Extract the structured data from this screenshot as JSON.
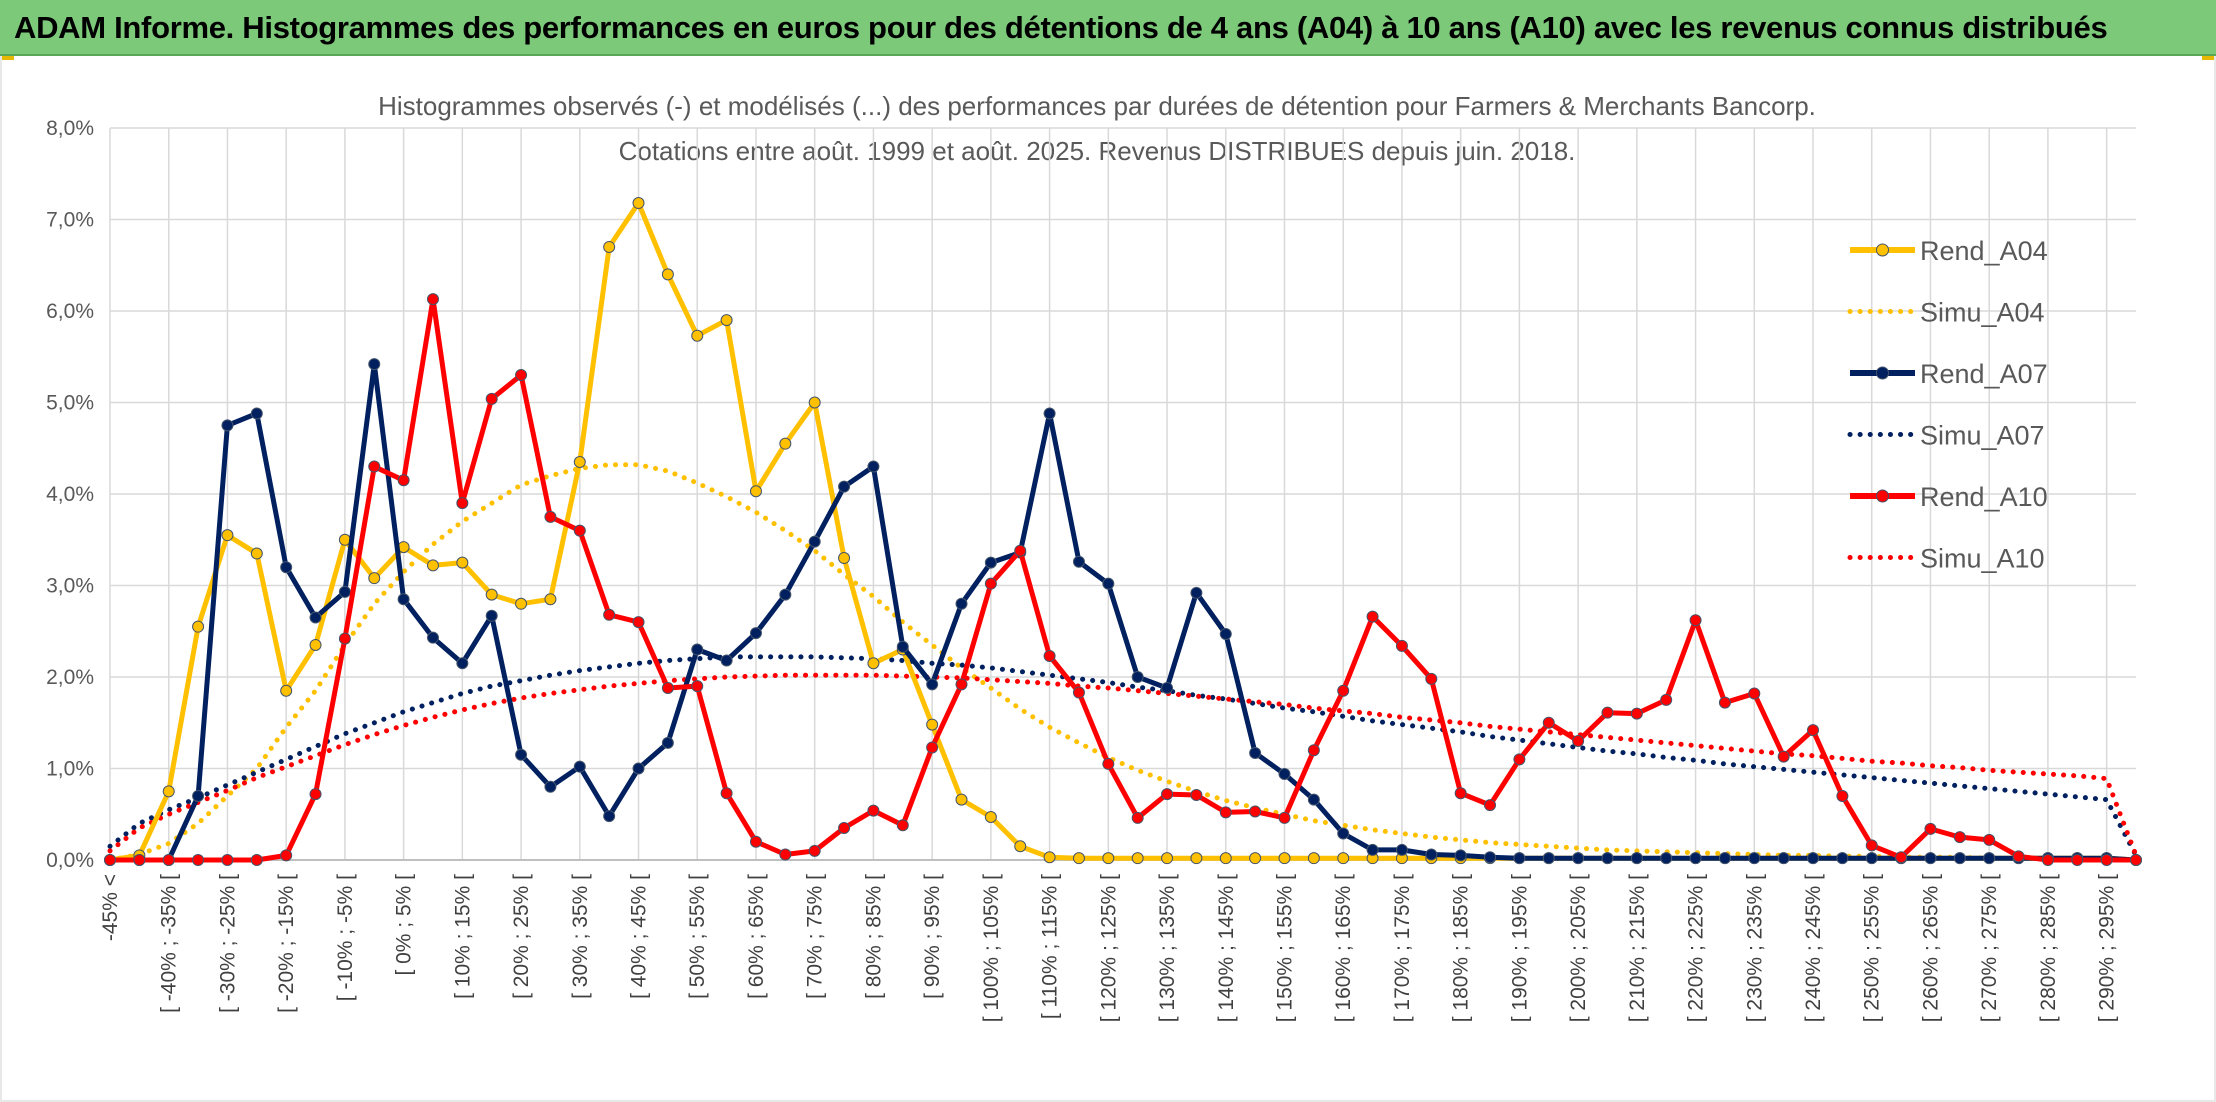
{
  "banner": {
    "title": "ADAM Informe. Histogrammes des performances en euros pour des détentions de 4 ans (A04) à 10 ans (A10) avec les revenus connus distribués"
  },
  "chart_data": {
    "type": "line",
    "title": "Histogrammes observés (-) et modélisés (...) des performances par durées de détention pour Farmers & Merchants Bancorp.",
    "subtitle": "Cotations entre août. 1999 et août. 2025. Revenus DISTRIBUES depuis juin. 2018.",
    "xlabel": "",
    "ylabel": "",
    "ylim": [
      0,
      8
    ],
    "y_ticks": [
      "0,0%",
      "1,0%",
      "2,0%",
      "3,0%",
      "4,0%",
      "5,0%",
      "6,0%",
      "7,0%",
      "8,0%"
    ],
    "grid": true,
    "legend_position": "right",
    "categories": [
      "-45% <",
      "[ -45% ; -40% [",
      "[ -40% ; -35% [",
      "[ -35% ; -30% [",
      "[ -30% ; -25% [",
      "[ -25% ; -20% [",
      "[ -20% ; -15% [",
      "[ -15% ; -10% [",
      "[ -10% ; -5% [",
      "[ -5% ; 0% [",
      "[ 0% ; 5% [",
      "[ 5% ; 10% [",
      "[ 10% ; 15% [",
      "[ 15% ; 20% [",
      "[ 20% ; 25% [",
      "[ 25% ; 30% [",
      "[ 30% ; 35% [",
      "[ 35% ; 40% [",
      "[ 40% ; 45% [",
      "[ 45% ; 50% [",
      "[ 50% ; 55% [",
      "[ 55% ; 60% [",
      "[ 60% ; 65% [",
      "[ 65% ; 70% [",
      "[ 70% ; 75% [",
      "[ 75% ; 80% [",
      "[ 80% ; 85% [",
      "[ 85% ; 90% [",
      "[ 90% ; 95% [",
      "[ 95% ; 100% [",
      "[ 100% ; 105% [",
      "[ 105% ; 110% [",
      "[ 110% ; 115% [",
      "[ 115% ; 120% [",
      "[ 120% ; 125% [",
      "[ 125% ; 130% [",
      "[ 130% ; 135% [",
      "[ 135% ; 140% [",
      "[ 140% ; 145% [",
      "[ 145% ; 150% [",
      "[ 150% ; 155% [",
      "[ 155% ; 160% [",
      "[ 160% ; 165% [",
      "[ 165% ; 170% [",
      "[ 170% ; 175% [",
      "[ 175% ; 180% [",
      "[ 180% ; 185% [",
      "[ 185% ; 190% [",
      "[ 190% ; 195% [",
      "[ 195% ; 200% [",
      "[ 200% ; 205% [",
      "[ 205% ; 210% [",
      "[ 210% ; 215% [",
      "[ 215% ; 220% [",
      "[ 220% ; 225% [",
      "[ 225% ; 230% [",
      "[ 230% ; 235% [",
      "[ 235% ; 240% [",
      "[ 240% ; 245% [",
      "[ 245% ; 250% [",
      "[ 250% ; 255% [",
      "[ 255% ; 260% [",
      "[ 260% ; 265% [",
      "[ 265% ; 270% [",
      "[ 270% ; 275% [",
      "[ 275% ; 280% [",
      "[ 280% ; 285% [",
      "[ 285% ; 290% [",
      "[ 290% ; 295% [",
      "[ 295% ; 300% ["
    ],
    "tick_labels_shown": [
      "-45% <",
      "[ -40% ; -35% [",
      "[ -30% ; -25% [",
      "[ -20% ; -15% [",
      "[ -10% ; -5% [",
      "[ 0% ; 5% [",
      "[ 10% ; 15% [",
      "[ 20% ; 25% [",
      "[ 30% ; 35% [",
      "[ 40% ; 45% [",
      "[ 50% ; 55% [",
      "[ 60% ; 65% [",
      "[ 70% ; 75% [",
      "[ 80% ; 85% [",
      "[ 90% ; 95% [",
      "[ 100% ; 105% [",
      "[ 110% ; 115% [",
      "[ 120% ; 125% [",
      "[ 130% ; 135% [",
      "[ 140% ; 145% [",
      "[ 150% ; 155% [",
      "[ 160% ; 165% [",
      "[ 170% ; 175% [",
      "[ 180% ; 185% [",
      "[ 190% ; 195% [",
      "[ 200% ; 205% [",
      "[ 210% ; 215% [",
      "[ 220% ; 225% [",
      "[ 230% ; 235% [",
      "[ 240% ; 245% [",
      "[ 250% ; 255% [",
      "[ 260% ; 265% [",
      "[ 270% ; 275% [",
      "[ 280% ; 285% [",
      "[ 290% ; 295% ["
    ],
    "series": [
      {
        "name": "Rend_A04",
        "color": "#ffc000",
        "style": "solid",
        "markers": true,
        "values": [
          0,
          0.05,
          0.75,
          2.55,
          3.55,
          3.35,
          1.85,
          2.35,
          3.5,
          3.08,
          3.42,
          3.22,
          3.25,
          2.9,
          2.8,
          2.85,
          4.35,
          6.7,
          7.18,
          6.4,
          5.73,
          5.9,
          4.03,
          4.55,
          5.0,
          3.3,
          2.15,
          2.3,
          1.48,
          0.66,
          0.47,
          0.15,
          0.03,
          0.02,
          0.02,
          0.02,
          0.02,
          0.02,
          0.02,
          0.02,
          0.02,
          0.02,
          0.02,
          0.02,
          0.02,
          0.02,
          0.02,
          0.02,
          0.02,
          0.02,
          0.02,
          0.02,
          0.02,
          0.02,
          0.02,
          0.02,
          0.02,
          0.02,
          0.02,
          0.02,
          0.02,
          0.02,
          0.02,
          0.02,
          0.02,
          0.02,
          0.02,
          0.02,
          0.02,
          0.0
        ]
      },
      {
        "name": "Simu_A04",
        "color": "#ffc000",
        "style": "dotted",
        "markers": false,
        "values": [
          0.0,
          0.06,
          0.18,
          0.4,
          0.7,
          1.0,
          1.45,
          1.85,
          2.35,
          2.8,
          3.15,
          3.45,
          3.7,
          3.9,
          4.1,
          4.2,
          4.28,
          4.32,
          4.32,
          4.25,
          4.12,
          3.97,
          3.8,
          3.6,
          3.38,
          3.12,
          2.88,
          2.6,
          2.35,
          2.1,
          1.88,
          1.65,
          1.45,
          1.28,
          1.12,
          0.98,
          0.86,
          0.75,
          0.65,
          0.57,
          0.5,
          0.43,
          0.38,
          0.33,
          0.29,
          0.25,
          0.22,
          0.19,
          0.17,
          0.15,
          0.13,
          0.11,
          0.1,
          0.09,
          0.08,
          0.07,
          0.06,
          0.05,
          0.05,
          0.04,
          0.04,
          0.03,
          0.03,
          0.03,
          0.02,
          0.02,
          0.02,
          0.02,
          0.02,
          0.0
        ]
      },
      {
        "name": "Rend_A07",
        "color": "#002060",
        "style": "solid",
        "markers": true,
        "values": [
          0,
          0,
          0,
          0.7,
          4.75,
          4.88,
          3.2,
          2.65,
          2.93,
          5.42,
          2.85,
          2.43,
          2.15,
          2.67,
          1.15,
          0.8,
          1.02,
          0.48,
          1.0,
          1.28,
          2.3,
          2.18,
          2.48,
          2.9,
          3.48,
          4.08,
          4.3,
          2.33,
          1.92,
          2.8,
          3.25,
          3.36,
          4.88,
          3.26,
          3.02,
          2.0,
          1.88,
          2.92,
          2.47,
          1.17,
          0.94,
          0.66,
          0.29,
          0.11,
          0.11,
          0.06,
          0.05,
          0.03,
          0.02,
          0.02,
          0.02,
          0.02,
          0.02,
          0.02,
          0.02,
          0.02,
          0.02,
          0.02,
          0.02,
          0.02,
          0.02,
          0.02,
          0.02,
          0.02,
          0.02,
          0.02,
          0.02,
          0.02,
          0.02,
          0.0
        ]
      },
      {
        "name": "Simu_A07",
        "color": "#002060",
        "style": "dotted",
        "markers": false,
        "values": [
          0.15,
          0.4,
          0.55,
          0.68,
          0.82,
          0.96,
          1.1,
          1.24,
          1.38,
          1.5,
          1.62,
          1.72,
          1.82,
          1.9,
          1.96,
          2.02,
          2.07,
          2.11,
          2.15,
          2.18,
          2.2,
          2.22,
          2.22,
          2.22,
          2.22,
          2.21,
          2.2,
          2.18,
          2.15,
          2.13,
          2.1,
          2.06,
          2.02,
          1.98,
          1.94,
          1.89,
          1.85,
          1.8,
          1.76,
          1.71,
          1.66,
          1.62,
          1.57,
          1.52,
          1.48,
          1.44,
          1.4,
          1.35,
          1.31,
          1.27,
          1.23,
          1.19,
          1.16,
          1.12,
          1.09,
          1.05,
          1.02,
          0.99,
          0.96,
          0.93,
          0.9,
          0.87,
          0.84,
          0.81,
          0.78,
          0.75,
          0.72,
          0.69,
          0.66,
          0.05
        ]
      },
      {
        "name": "Rend_A10",
        "color": "#ff0000",
        "style": "solid",
        "markers": true,
        "values": [
          0,
          0,
          0,
          0,
          0,
          0,
          0.05,
          0.72,
          2.42,
          4.3,
          4.15,
          6.13,
          3.9,
          5.04,
          5.3,
          3.75,
          3.6,
          2.68,
          2.6,
          1.88,
          1.9,
          0.73,
          0.2,
          0.06,
          0.1,
          0.35,
          0.54,
          0.38,
          1.23,
          1.92,
          3.02,
          3.38,
          2.23,
          1.83,
          1.05,
          0.46,
          0.72,
          0.71,
          0.52,
          0.53,
          0.46,
          1.2,
          1.85,
          2.66,
          2.34,
          1.98,
          0.73,
          0.6,
          1.1,
          1.5,
          1.3,
          1.61,
          1.6,
          1.75,
          2.62,
          1.72,
          1.82,
          1.13,
          1.42,
          0.7,
          0.16,
          0.03,
          0.34,
          0.25,
          0.22,
          0.04,
          0.0,
          0.0,
          0.0,
          0.0
        ]
      },
      {
        "name": "Simu_A10",
        "color": "#ff0000",
        "style": "dotted",
        "markers": false,
        "values": [
          0.1,
          0.35,
          0.5,
          0.63,
          0.76,
          0.9,
          1.02,
          1.14,
          1.26,
          1.37,
          1.47,
          1.56,
          1.64,
          1.71,
          1.77,
          1.82,
          1.86,
          1.9,
          1.93,
          1.96,
          1.98,
          2.0,
          2.01,
          2.02,
          2.02,
          2.02,
          2.02,
          2.01,
          2.0,
          1.99,
          1.97,
          1.95,
          1.93,
          1.9,
          1.88,
          1.85,
          1.82,
          1.79,
          1.76,
          1.73,
          1.7,
          1.66,
          1.63,
          1.6,
          1.56,
          1.53,
          1.5,
          1.46,
          1.43,
          1.4,
          1.37,
          1.34,
          1.31,
          1.28,
          1.25,
          1.22,
          1.19,
          1.16,
          1.14,
          1.11,
          1.08,
          1.06,
          1.03,
          1.01,
          0.98,
          0.96,
          0.94,
          0.92,
          0.89,
          0.05
        ]
      }
    ]
  }
}
